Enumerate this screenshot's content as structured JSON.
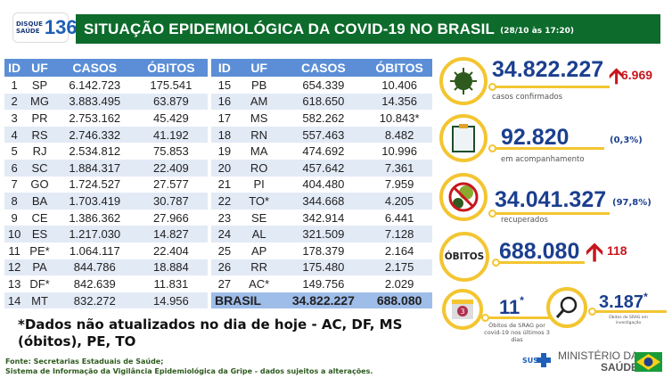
{
  "header": {
    "logo_line1": "DISQUE",
    "logo_line2": "SAÚDE",
    "logo_number": "136",
    "title": "SITUAÇÃO EPIDEMIOLÓGICA DA COVID-19 NO BRASIL",
    "date": "(28/10 às 17:20)"
  },
  "table": {
    "columns": [
      "ID",
      "UF",
      "CASOS",
      "ÓBITOS"
    ],
    "rows": [
      [
        "1",
        "SP",
        "6.142.723",
        "175.541"
      ],
      [
        "2",
        "MG",
        "3.883.495",
        "63.879"
      ],
      [
        "3",
        "PR",
        "2.753.162",
        "45.429"
      ],
      [
        "4",
        "RS",
        "2.746.332",
        "41.192"
      ],
      [
        "5",
        "RJ",
        "2.534.812",
        "75.853"
      ],
      [
        "6",
        "SC",
        "1.884.317",
        "22.409"
      ],
      [
        "7",
        "GO",
        "1.724.527",
        "27.577"
      ],
      [
        "8",
        "BA",
        "1.703.419",
        "30.787"
      ],
      [
        "9",
        "CE",
        "1.386.362",
        "27.966"
      ],
      [
        "10",
        "ES",
        "1.217.030",
        "14.827"
      ],
      [
        "11",
        "PE*",
        "1.064.117",
        "22.404"
      ],
      [
        "12",
        "PA",
        "844.786",
        "18.884"
      ],
      [
        "13",
        "DF*",
        "842.639",
        "11.831"
      ],
      [
        "14",
        "MT",
        "832.272",
        "14.956"
      ],
      [
        "15",
        "PB",
        "654.339",
        "10.406"
      ],
      [
        "16",
        "AM",
        "618.650",
        "14.356"
      ],
      [
        "17",
        "MS",
        "582.262",
        "10.843*"
      ],
      [
        "18",
        "RN",
        "557.463",
        "8.482"
      ],
      [
        "19",
        "MA",
        "474.692",
        "10.996"
      ],
      [
        "20",
        "RO",
        "457.642",
        "7.361"
      ],
      [
        "21",
        "PI",
        "404.480",
        "7.959"
      ],
      [
        "22",
        "TO*",
        "344.668",
        "4.205"
      ],
      [
        "23",
        "SE",
        "342.914",
        "6.441"
      ],
      [
        "24",
        "AL",
        "321.509",
        "7.128"
      ],
      [
        "25",
        "AP",
        "178.379",
        "2.164"
      ],
      [
        "26",
        "RR",
        "175.480",
        "2.175"
      ],
      [
        "27",
        "AC*",
        "149.756",
        "2.029"
      ]
    ],
    "total": {
      "label": "BRASIL",
      "casos": "34.822.227",
      "obitos": "688.080"
    }
  },
  "stats": {
    "confirmados": {
      "value": "34.822.227",
      "increase": "6.969",
      "label": "casos confirmados",
      "icon": "virus-icon"
    },
    "acompanhamento": {
      "value": "92.820",
      "pct": "(0,3%)",
      "label": "em acompanhamento",
      "icon": "clipboard-icon"
    },
    "recuperados": {
      "value": "34.041.327",
      "pct": "(97,8%)",
      "label": "recuperados",
      "icon": "no-virus-icon"
    },
    "obitos": {
      "badge": "ÓBITOS",
      "value": "688.080",
      "increase": "118"
    },
    "srag": {
      "value": "11",
      "asterisk": "*",
      "label": "Óbitos de SRAG por covid-19 nos últimos 3 dias",
      "calendar_day": "3"
    },
    "investigacao": {
      "value": "3.187",
      "asterisk": "*",
      "label": "Óbitos de SRAG em investigação"
    }
  },
  "note": "*Dados não atualizados no dia de hoje - AC, DF, MS (óbitos), PE, TO",
  "source": {
    "line1": "Fonte: Secretarias Estaduais de Saúde;",
    "line2": "Sistema de Informação da Vigilância Epidemiológica da Gripe - dados sujeitos a alterações."
  },
  "footer": {
    "sus": "SUS",
    "ministry1": "MINISTÉRIO DA",
    "ministry2": "SAÚDE"
  },
  "colors": {
    "green": "#0d6b2c",
    "blue": "#1b3f8f",
    "header_blue": "#5b8ed6",
    "yellow": "#f3c531",
    "red": "#c8161d"
  }
}
